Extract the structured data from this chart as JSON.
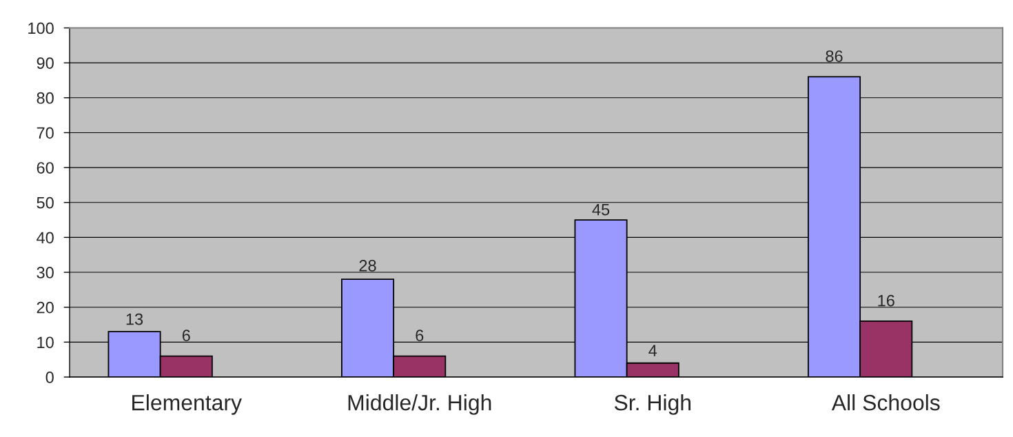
{
  "chart_data": {
    "type": "bar",
    "categories": [
      "Elementary",
      "Middle/Jr. High",
      "Sr. High",
      "All Schools"
    ],
    "series": [
      {
        "color": "#9999ff",
        "values": [
          13,
          28,
          45,
          86
        ]
      },
      {
        "color": "#993366",
        "values": [
          6,
          6,
          4,
          16
        ]
      },
      {
        "values": [
          null,
          null,
          null,
          null
        ]
      }
    ],
    "ylim": [
      0,
      100
    ],
    "yticks": [
      0,
      10,
      20,
      30,
      40,
      50,
      60,
      70,
      80,
      90,
      100
    ],
    "grid": "y",
    "data_labels": true
  }
}
